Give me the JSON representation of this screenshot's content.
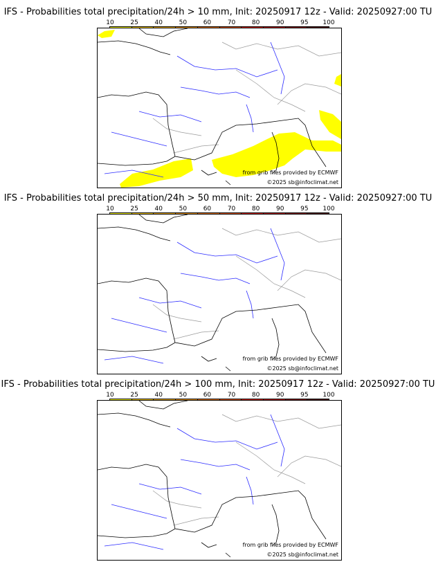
{
  "legend": {
    "ticks": [
      "10",
      "25",
      "40",
      "50",
      "60",
      "70",
      "80",
      "90",
      "95",
      "100"
    ],
    "colors": [
      "#ffff00",
      "#ffd200",
      "#f5b400",
      "#f09a00",
      "#eb7800",
      "#e65a00",
      "#dc2a00",
      "#c00000",
      "#8c0000",
      "#5a0000"
    ]
  },
  "panels": [
    {
      "title": "IFS - Probabilities total precipitation/24h > 10 mm, Init: 20250917 12z - Valid: 20250927:00 TU",
      "threshold_mm": 10,
      "has_precip": true
    },
    {
      "title": "IFS - Probabilities total precipitation/24h > 50 mm, Init: 20250917 12z - Valid: 20250927:00 TU",
      "threshold_mm": 50,
      "has_precip": false
    },
    {
      "title": "IFS - Probabilities total precipitation/24h > 100 mm, Init: 20250917 12z - Valid: 20250927:00 TU",
      "threshold_mm": 100,
      "has_precip": false
    }
  ],
  "credits": {
    "source": "from grib files provided by ECMWF",
    "copyright": "©2025 sb@infoclimat.net"
  }
}
